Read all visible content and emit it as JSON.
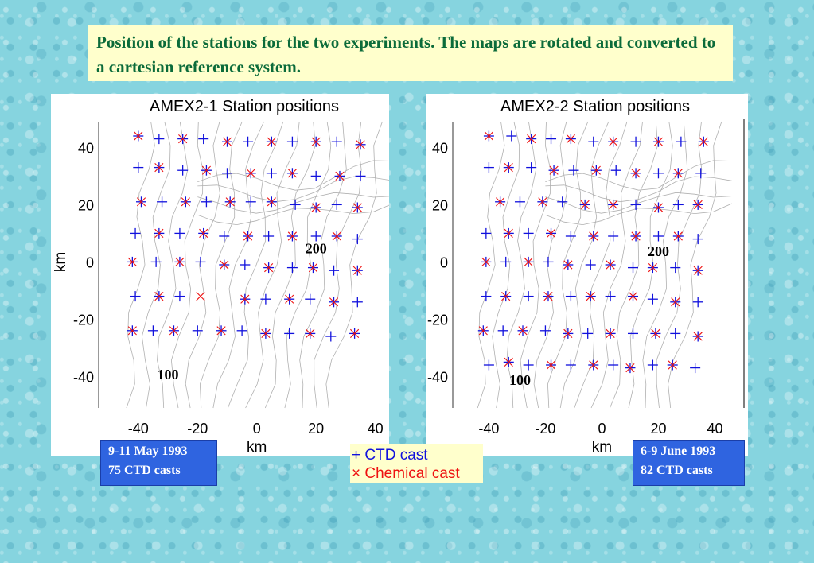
{
  "title": "Position of the stations for the two experiments. The maps are rotated and converted to a cartesian reference system.",
  "legend": {
    "ctd_symbol": "+",
    "ctd_label": "CTD cast",
    "chem_symbol": "×",
    "chem_label": "Chemical cast"
  },
  "colors": {
    "ctd": "#1111dd",
    "chemical": "#ee1111",
    "contour": "#b0b0b0"
  },
  "chart_data": [
    {
      "type": "scatter",
      "title": "AMEX2-1 Station positions",
      "xlabel": "km",
      "ylabel": "km",
      "xlim": [
        -48,
        46
      ],
      "ylim": [
        -51,
        49
      ],
      "x_ticks": [
        "-40",
        "-20",
        "0",
        "20",
        "40"
      ],
      "y_ticks": [
        "40",
        "20",
        "0",
        "-20",
        "-40"
      ],
      "contour_labels": [
        {
          "text": "200",
          "x": 20,
          "y": 3
        },
        {
          "text": "100",
          "x": -30,
          "y": -41
        }
      ],
      "info": {
        "line1": "9-11 May 1993",
        "line2": "75 CTD casts"
      },
      "stations": [
        {
          "x": -40,
          "y": 44,
          "chem": true
        },
        {
          "x": -33,
          "y": 43,
          "chem": false
        },
        {
          "x": -25,
          "y": 43,
          "chem": true
        },
        {
          "x": -18,
          "y": 43,
          "chem": false
        },
        {
          "x": -10,
          "y": 42,
          "chem": true
        },
        {
          "x": -3,
          "y": 42,
          "chem": false
        },
        {
          "x": 5,
          "y": 42,
          "chem": true
        },
        {
          "x": 12,
          "y": 42,
          "chem": false
        },
        {
          "x": 20,
          "y": 42,
          "chem": true
        },
        {
          "x": 27,
          "y": 42,
          "chem": false
        },
        {
          "x": 35,
          "y": 41,
          "chem": true
        },
        {
          "x": -40,
          "y": 33,
          "chem": false
        },
        {
          "x": -33,
          "y": 33,
          "chem": true
        },
        {
          "x": -25,
          "y": 32,
          "chem": false
        },
        {
          "x": -17,
          "y": 32,
          "chem": true
        },
        {
          "x": -10,
          "y": 31,
          "chem": false
        },
        {
          "x": -2,
          "y": 31,
          "chem": true
        },
        {
          "x": 5,
          "y": 31,
          "chem": false
        },
        {
          "x": 12,
          "y": 31,
          "chem": true
        },
        {
          "x": 20,
          "y": 30,
          "chem": false
        },
        {
          "x": 28,
          "y": 30,
          "chem": true
        },
        {
          "x": 35,
          "y": 30,
          "chem": false
        },
        {
          "x": -39,
          "y": 21,
          "chem": true
        },
        {
          "x": -32,
          "y": 21,
          "chem": false
        },
        {
          "x": -24,
          "y": 21,
          "chem": true
        },
        {
          "x": -17,
          "y": 21,
          "chem": false
        },
        {
          "x": -9,
          "y": 21,
          "chem": true
        },
        {
          "x": -2,
          "y": 21,
          "chem": false
        },
        {
          "x": 5,
          "y": 21,
          "chem": true
        },
        {
          "x": 13,
          "y": 20,
          "chem": false
        },
        {
          "x": 20,
          "y": 19,
          "chem": true
        },
        {
          "x": 27,
          "y": 20,
          "chem": false
        },
        {
          "x": 34,
          "y": 19,
          "chem": true
        },
        {
          "x": -41,
          "y": 10,
          "chem": false
        },
        {
          "x": -33,
          "y": 10,
          "chem": true
        },
        {
          "x": -26,
          "y": 10,
          "chem": false
        },
        {
          "x": -18,
          "y": 10,
          "chem": true
        },
        {
          "x": -11,
          "y": 9,
          "chem": false
        },
        {
          "x": -3,
          "y": 9,
          "chem": true
        },
        {
          "x": 4,
          "y": 9,
          "chem": false
        },
        {
          "x": 12,
          "y": 9,
          "chem": true
        },
        {
          "x": 20,
          "y": 9,
          "chem": false
        },
        {
          "x": 27,
          "y": 9,
          "chem": true
        },
        {
          "x": 34,
          "y": 8,
          "chem": false
        },
        {
          "x": -42,
          "y": 0,
          "chem": true
        },
        {
          "x": -34,
          "y": 0,
          "chem": false
        },
        {
          "x": -26,
          "y": 0,
          "chem": true
        },
        {
          "x": -19,
          "y": 0,
          "chem": false
        },
        {
          "x": -11,
          "y": -1,
          "chem": true
        },
        {
          "x": -4,
          "y": -1,
          "chem": false
        },
        {
          "x": 4,
          "y": -2,
          "chem": true
        },
        {
          "x": 12,
          "y": -2,
          "chem": false
        },
        {
          "x": 19,
          "y": -2,
          "chem": true
        },
        {
          "x": 26,
          "y": -3,
          "chem": false
        },
        {
          "x": 34,
          "y": -3,
          "chem": true
        },
        {
          "x": -41,
          "y": -12,
          "chem": false
        },
        {
          "x": -33,
          "y": -12,
          "chem": true
        },
        {
          "x": -26,
          "y": -12,
          "chem": false
        },
        {
          "x": -19,
          "y": -12,
          "chem": true,
          "ctd": false
        },
        {
          "x": -4,
          "y": -13,
          "chem": true
        },
        {
          "x": 3,
          "y": -13,
          "chem": false
        },
        {
          "x": 11,
          "y": -13,
          "chem": true
        },
        {
          "x": 18,
          "y": -13,
          "chem": false
        },
        {
          "x": 26,
          "y": -14,
          "chem": true
        },
        {
          "x": 34,
          "y": -14,
          "chem": false
        },
        {
          "x": -42,
          "y": -24,
          "chem": true
        },
        {
          "x": -35,
          "y": -24,
          "chem": false
        },
        {
          "x": -28,
          "y": -24,
          "chem": true
        },
        {
          "x": -20,
          "y": -24,
          "chem": false
        },
        {
          "x": -12,
          "y": -24,
          "chem": true
        },
        {
          "x": -5,
          "y": -24,
          "chem": false
        },
        {
          "x": 3,
          "y": -25,
          "chem": true
        },
        {
          "x": 11,
          "y": -25,
          "chem": false
        },
        {
          "x": 18,
          "y": -25,
          "chem": true
        },
        {
          "x": 25,
          "y": -26,
          "chem": false
        },
        {
          "x": 33,
          "y": -25,
          "chem": true
        }
      ]
    },
    {
      "type": "scatter",
      "title": "AMEX2-2 Station positions",
      "xlabel": "km",
      "ylabel": "",
      "xlim": [
        -48,
        50
      ],
      "ylim": [
        -51,
        49
      ],
      "x_ticks": [
        "-40",
        "-20",
        "0",
        "20",
        "40"
      ],
      "y_ticks": [
        "40",
        "20",
        "0",
        "-20",
        "-40"
      ],
      "contour_labels": [
        {
          "text": "200",
          "x": 20,
          "y": 2
        },
        {
          "text": "100",
          "x": -29,
          "y": -43
        }
      ],
      "info": {
        "line1": "6-9 June 1993",
        "line2": "82 CTD casts"
      },
      "stations": [
        {
          "x": -40,
          "y": 44,
          "chem": true
        },
        {
          "x": -32,
          "y": 44,
          "chem": false
        },
        {
          "x": -25,
          "y": 43,
          "chem": true
        },
        {
          "x": -18,
          "y": 43,
          "chem": false
        },
        {
          "x": -11,
          "y": 43,
          "chem": true
        },
        {
          "x": -3,
          "y": 42,
          "chem": false
        },
        {
          "x": 4,
          "y": 42,
          "chem": true
        },
        {
          "x": 12,
          "y": 42,
          "chem": false
        },
        {
          "x": 20,
          "y": 42,
          "chem": true
        },
        {
          "x": 28,
          "y": 42,
          "chem": false
        },
        {
          "x": 36,
          "y": 42,
          "chem": true
        },
        {
          "x": -40,
          "y": 33,
          "chem": false
        },
        {
          "x": -33,
          "y": 33,
          "chem": true
        },
        {
          "x": -25,
          "y": 33,
          "chem": false
        },
        {
          "x": -17,
          "y": 32,
          "chem": true
        },
        {
          "x": -10,
          "y": 32,
          "chem": false
        },
        {
          "x": -2,
          "y": 32,
          "chem": true
        },
        {
          "x": 5,
          "y": 32,
          "chem": false
        },
        {
          "x": 12,
          "y": 31,
          "chem": true
        },
        {
          "x": 20,
          "y": 31,
          "chem": false
        },
        {
          "x": 27,
          "y": 31,
          "chem": true
        },
        {
          "x": 35,
          "y": 31,
          "chem": false
        },
        {
          "x": -36,
          "y": 21,
          "chem": true
        },
        {
          "x": -29,
          "y": 21,
          "chem": false
        },
        {
          "x": -21,
          "y": 21,
          "chem": true
        },
        {
          "x": -14,
          "y": 21,
          "chem": false
        },
        {
          "x": -6,
          "y": 20,
          "chem": true
        },
        {
          "x": 4,
          "y": 20,
          "chem": true
        },
        {
          "x": 12,
          "y": 20,
          "chem": false
        },
        {
          "x": 20,
          "y": 19,
          "chem": true
        },
        {
          "x": 27,
          "y": 20,
          "chem": false
        },
        {
          "x": 34,
          "y": 20,
          "chem": true
        },
        {
          "x": -41,
          "y": 10,
          "chem": false
        },
        {
          "x": -33,
          "y": 10,
          "chem": true
        },
        {
          "x": -26,
          "y": 10,
          "chem": false
        },
        {
          "x": -18,
          "y": 10,
          "chem": true
        },
        {
          "x": -11,
          "y": 9,
          "chem": false
        },
        {
          "x": -3,
          "y": 9,
          "chem": true
        },
        {
          "x": 4,
          "y": 9,
          "chem": false
        },
        {
          "x": 12,
          "y": 9,
          "chem": true
        },
        {
          "x": 20,
          "y": 9,
          "chem": false
        },
        {
          "x": 27,
          "y": 9,
          "chem": true
        },
        {
          "x": 34,
          "y": 8,
          "chem": false
        },
        {
          "x": -41,
          "y": 0,
          "chem": true
        },
        {
          "x": -34,
          "y": 0,
          "chem": false
        },
        {
          "x": -26,
          "y": 0,
          "chem": true
        },
        {
          "x": -19,
          "y": 0,
          "chem": false
        },
        {
          "x": -12,
          "y": -1,
          "chem": true
        },
        {
          "x": -4,
          "y": -1,
          "chem": false
        },
        {
          "x": 3,
          "y": -1,
          "chem": true
        },
        {
          "x": 11,
          "y": -2,
          "chem": false
        },
        {
          "x": 18,
          "y": -2,
          "chem": true
        },
        {
          "x": 26,
          "y": -2,
          "chem": false
        },
        {
          "x": 34,
          "y": -3,
          "chem": true
        },
        {
          "x": -41,
          "y": -12,
          "chem": false
        },
        {
          "x": -34,
          "y": -12,
          "chem": true
        },
        {
          "x": -26,
          "y": -12,
          "chem": false
        },
        {
          "x": -19,
          "y": -12,
          "chem": true
        },
        {
          "x": -11,
          "y": -12,
          "chem": false
        },
        {
          "x": -4,
          "y": -12,
          "chem": true
        },
        {
          "x": 3,
          "y": -12,
          "chem": false
        },
        {
          "x": 11,
          "y": -12,
          "chem": true
        },
        {
          "x": 18,
          "y": -13,
          "chem": false
        },
        {
          "x": 26,
          "y": -14,
          "chem": true
        },
        {
          "x": 34,
          "y": -14,
          "chem": false
        },
        {
          "x": -42,
          "y": -24,
          "chem": true
        },
        {
          "x": -35,
          "y": -24,
          "chem": false
        },
        {
          "x": -28,
          "y": -24,
          "chem": true
        },
        {
          "x": -20,
          "y": -24,
          "chem": false
        },
        {
          "x": -12,
          "y": -25,
          "chem": true
        },
        {
          "x": -5,
          "y": -25,
          "chem": false
        },
        {
          "x": 3,
          "y": -25,
          "chem": true
        },
        {
          "x": 11,
          "y": -25,
          "chem": false
        },
        {
          "x": 19,
          "y": -25,
          "chem": true
        },
        {
          "x": 26,
          "y": -25,
          "chem": false
        },
        {
          "x": 34,
          "y": -26,
          "chem": true
        },
        {
          "x": -40,
          "y": -36,
          "chem": false
        },
        {
          "x": -33,
          "y": -35,
          "chem": true
        },
        {
          "x": -26,
          "y": -36,
          "chem": false
        },
        {
          "x": -18,
          "y": -36,
          "chem": true
        },
        {
          "x": -11,
          "y": -36,
          "chem": false
        },
        {
          "x": -3,
          "y": -36,
          "chem": true
        },
        {
          "x": 4,
          "y": -36,
          "chem": false
        },
        {
          "x": 10,
          "y": -37,
          "chem": true
        },
        {
          "x": 18,
          "y": -36,
          "chem": false
        },
        {
          "x": 25,
          "y": -36,
          "chem": true
        },
        {
          "x": 33,
          "y": -37,
          "chem": false
        }
      ]
    }
  ]
}
